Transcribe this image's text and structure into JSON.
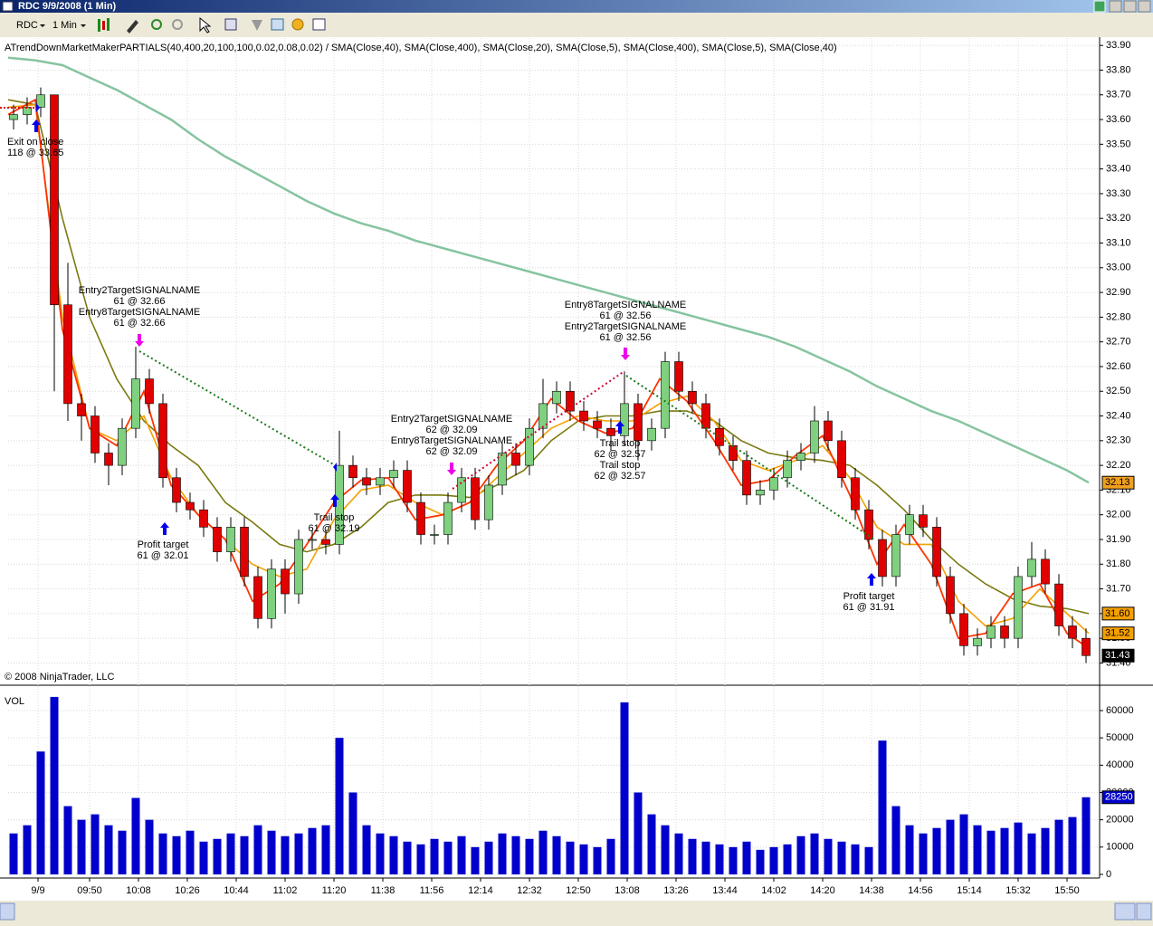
{
  "window": {
    "title": "RDC  9/9/2008 (1 Min)"
  },
  "toolbar": {
    "instrument": "RDC",
    "interval": "1 Min"
  },
  "chart_data": [
    {
      "type": "candlestick",
      "title": "ATrendDownMarketMakerPARTIALS(40,400,20,100,100,0.02,0.08,0.02) / SMA(Close,40), SMA(Close,400), SMA(Close,20), SMA(Close,5), SMA(Close,400), SMA(Close,5), SMA(Close,40)",
      "copyright": "© 2008 NinjaTrader, LLC",
      "up_color": "#7fd07f",
      "down_color": "#e00000",
      "x": [
        562,
        567,
        572,
        577,
        582,
        587,
        592,
        597,
        602,
        607,
        612,
        617,
        622,
        627,
        632,
        637,
        642,
        647,
        652,
        657,
        662,
        667,
        672,
        677,
        682,
        687,
        692,
        697,
        702,
        707,
        712,
        717,
        722,
        727,
        732,
        737,
        742,
        747,
        752,
        757,
        762,
        767,
        772,
        777,
        782,
        787,
        792,
        797,
        802,
        807,
        812,
        817,
        822,
        827,
        832,
        837,
        842,
        847,
        852,
        857,
        862,
        867,
        872,
        877,
        882,
        887,
        892,
        897,
        902,
        907,
        912,
        917,
        922,
        927,
        932,
        937,
        942,
        947,
        952,
        957
      ],
      "open": [
        33.6,
        33.62,
        33.65,
        33.7,
        32.85,
        32.45,
        32.4,
        32.25,
        32.2,
        32.35,
        32.55,
        32.45,
        32.15,
        32.05,
        32.02,
        31.95,
        31.85,
        31.95,
        31.75,
        31.58,
        31.78,
        31.68,
        31.9,
        31.9,
        31.88,
        32.2,
        32.15,
        32.12,
        32.15,
        32.18,
        32.05,
        31.92,
        31.92,
        32.05,
        32.15,
        31.98,
        32.12,
        32.25,
        32.2,
        32.35,
        32.45,
        32.5,
        32.42,
        32.38,
        32.35,
        32.32,
        32.45,
        32.3,
        32.35,
        32.62,
        32.5,
        32.45,
        32.35,
        32.28,
        32.22,
        32.08,
        32.1,
        32.15,
        32.22,
        32.25,
        32.38,
        32.3,
        32.15,
        32.02,
        31.9,
        31.75,
        31.92,
        32.0,
        31.95,
        31.75,
        31.6,
        31.47,
        31.5,
        31.55,
        31.5,
        31.75,
        31.82,
        31.72,
        31.55,
        31.5
      ],
      "high": [
        33.66,
        33.69,
        33.73,
        33.7,
        33.02,
        32.49,
        32.44,
        32.29,
        32.39,
        32.68,
        32.59,
        32.49,
        32.19,
        32.09,
        32.06,
        31.99,
        31.99,
        31.99,
        31.79,
        31.82,
        31.82,
        31.94,
        31.94,
        31.94,
        32.34,
        32.24,
        32.19,
        32.19,
        32.22,
        32.22,
        32.09,
        31.96,
        32.09,
        32.19,
        32.19,
        32.16,
        32.29,
        32.29,
        32.39,
        32.55,
        32.54,
        32.54,
        32.46,
        32.42,
        32.39,
        32.58,
        32.49,
        32.39,
        32.66,
        32.66,
        32.54,
        32.49,
        32.39,
        32.32,
        32.26,
        32.14,
        32.19,
        32.26,
        32.29,
        32.44,
        32.42,
        32.34,
        32.19,
        32.06,
        31.94,
        31.96,
        32.04,
        32.04,
        31.99,
        31.79,
        31.64,
        31.54,
        31.59,
        31.59,
        31.79,
        31.89,
        31.86,
        31.76,
        31.59,
        31.54
      ],
      "low": [
        33.56,
        33.58,
        33.61,
        32.5,
        32.38,
        32.3,
        32.21,
        32.12,
        32.16,
        32.31,
        32.41,
        32.11,
        32.01,
        31.98,
        31.91,
        31.81,
        31.81,
        31.71,
        31.54,
        31.54,
        31.6,
        31.64,
        31.86,
        31.84,
        31.84,
        32.11,
        32.08,
        32.08,
        32.11,
        32.01,
        31.88,
        31.88,
        31.88,
        32.01,
        31.94,
        31.94,
        32.08,
        32.16,
        32.16,
        32.31,
        32.41,
        32.38,
        32.34,
        32.31,
        32.26,
        32.28,
        32.22,
        32.26,
        32.31,
        32.46,
        32.41,
        32.31,
        32.24,
        32.18,
        32.04,
        32.04,
        32.06,
        32.11,
        32.18,
        32.21,
        32.26,
        32.11,
        31.98,
        31.86,
        31.71,
        31.71,
        31.88,
        31.91,
        31.71,
        31.56,
        31.43,
        31.43,
        31.46,
        31.46,
        31.46,
        31.71,
        31.68,
        31.51,
        31.46,
        31.4
      ],
      "close": [
        33.62,
        33.65,
        33.7,
        32.85,
        32.45,
        32.4,
        32.25,
        32.2,
        32.35,
        32.55,
        32.45,
        32.15,
        32.05,
        32.02,
        31.95,
        31.85,
        31.95,
        31.75,
        31.58,
        31.78,
        31.68,
        31.9,
        31.9,
        31.88,
        32.2,
        32.15,
        32.12,
        32.15,
        32.18,
        32.05,
        31.92,
        31.92,
        32.05,
        32.15,
        31.98,
        32.12,
        32.25,
        32.2,
        32.35,
        32.45,
        32.5,
        32.42,
        32.38,
        32.35,
        32.32,
        32.45,
        32.3,
        32.35,
        32.62,
        32.5,
        32.45,
        32.35,
        32.28,
        32.22,
        32.08,
        32.1,
        32.15,
        32.22,
        32.25,
        32.38,
        32.3,
        32.15,
        32.02,
        31.9,
        31.75,
        31.92,
        32.0,
        31.95,
        31.75,
        31.6,
        31.47,
        31.5,
        31.55,
        31.5,
        31.75,
        31.82,
        31.72,
        31.55,
        31.5,
        31.43
      ],
      "line_x": [
        560,
        570,
        580,
        590,
        600,
        610,
        620,
        630,
        640,
        650,
        660,
        670,
        680,
        690,
        700,
        710,
        720,
        730,
        740,
        750,
        760,
        770,
        780,
        790,
        800,
        810,
        820,
        830,
        840,
        850,
        860,
        870,
        880,
        890,
        900,
        910,
        920,
        930,
        940,
        950,
        958
      ],
      "lines": [
        {
          "color": "#86c4a0",
          "width": 2.5,
          "values": [
            33.85,
            33.84,
            33.82,
            33.77,
            33.72,
            33.66,
            33.6,
            33.52,
            33.45,
            33.39,
            33.33,
            33.27,
            33.22,
            33.18,
            33.15,
            33.11,
            33.08,
            33.05,
            33.02,
            32.99,
            32.96,
            32.93,
            32.9,
            32.87,
            32.84,
            32.81,
            32.78,
            32.75,
            32.72,
            32.68,
            32.63,
            32.58,
            32.52,
            32.47,
            32.42,
            32.38,
            32.33,
            32.28,
            32.23,
            32.18,
            32.13
          ]
        },
        {
          "color": "#7a7a10",
          "width": 1.6,
          "values": [
            33.68,
            33.66,
            33.2,
            32.8,
            32.55,
            32.38,
            32.28,
            32.2,
            32.05,
            31.97,
            31.88,
            31.85,
            31.88,
            31.95,
            32.05,
            32.08,
            32.08,
            32.07,
            32.12,
            32.18,
            32.3,
            32.38,
            32.4,
            32.4,
            32.42,
            32.42,
            32.38,
            32.3,
            32.25,
            32.23,
            32.22,
            32.2,
            32.12,
            32.02,
            31.9,
            31.8,
            31.72,
            31.66,
            31.63,
            31.62,
            31.6
          ]
        },
        {
          "color": "#f5a000",
          "width": 1.6,
          "values": [
            33.65,
            33.66,
            32.8,
            32.35,
            32.3,
            32.4,
            32.15,
            32.0,
            31.9,
            31.8,
            31.75,
            31.78,
            31.98,
            32.1,
            32.12,
            32.05,
            32.0,
            32.05,
            32.15,
            32.25,
            32.35,
            32.4,
            32.38,
            32.38,
            32.45,
            32.48,
            32.38,
            32.22,
            32.18,
            32.22,
            32.28,
            32.15,
            31.95,
            31.88,
            31.88,
            31.65,
            31.55,
            31.58,
            31.7,
            31.6,
            31.52
          ]
        },
        {
          "color": "#ff3300",
          "width": 1.8,
          "values": [
            33.62,
            33.68,
            32.75,
            32.35,
            32.28,
            32.5,
            32.12,
            32.0,
            31.9,
            31.65,
            31.72,
            31.88,
            32.05,
            32.14,
            32.15,
            31.98,
            32.0,
            32.05,
            32.2,
            32.3,
            32.47,
            32.38,
            32.33,
            32.35,
            32.55,
            32.46,
            32.3,
            32.12,
            32.14,
            32.24,
            32.32,
            32.08,
            31.8,
            31.96,
            31.8,
            31.5,
            31.52,
            31.68,
            31.72,
            31.52,
            31.46
          ]
        }
      ],
      "price_labels": [
        {
          "value": 32.13,
          "color": "#f0a020",
          "text_color": "#000000"
        },
        {
          "value": {
            "value": 31.6,
            "label": "31.60"
          },
          "color": "#f5a000",
          "text_color": "#000000"
        },
        {
          "value": 31.52,
          "color": "#f5a000",
          "text_color": "#000000"
        },
        {
          "value": 31.43,
          "color": "#000000",
          "text_color": "#ffffff"
        }
      ],
      "annotations": [
        {
          "lines": [
            "Exit on close",
            "118 @ 33.65"
          ]
        },
        {
          "lines": [
            "Entry2TargetSIGNALNAME",
            "61 @ 32.66",
            "Entry8TargetSIGNALNAME",
            "61 @ 32.66"
          ]
        },
        {
          "lines": [
            "Profit target",
            "61 @ 32.01"
          ]
        },
        {
          "lines": [
            "Trail stop",
            "61 @ 32.19"
          ]
        },
        {
          "lines": [
            "Entry2TargetSIGNALNAME",
            "62 @ 32.09",
            "Entry8TargetSIGNALNAME",
            "62 @ 32.09"
          ]
        },
        {
          "lines": [
            "Entry8TargetSIGNALNAME",
            "61 @ 32.56",
            "Entry2TargetSIGNALNAME",
            "61 @ 32.56"
          ]
        },
        {
          "lines": [
            "Trail stop",
            "62 @ 32.57",
            "Trail stop",
            "62 @ 32.57"
          ]
        },
        {
          "lines": [
            "Profit target",
            "61 @ 31.91"
          ]
        }
      ],
      "xlim": [
        560,
        962
      ],
      "ylim": [
        31.31,
        33.93
      ],
      "grid": true,
      "yticks": [
        {
          "value": 33.9,
          "label": "33.90"
        },
        {
          "value": 33.8,
          "label": "33.80"
        },
        {
          "value": 33.7,
          "label": "33.70"
        },
        {
          "value": 33.6,
          "label": "33.60"
        },
        {
          "value": 33.5,
          "label": "33.50"
        },
        {
          "value": 33.4,
          "label": "33.40"
        },
        {
          "value": 33.3,
          "label": "33.30"
        },
        {
          "value": 33.2,
          "label": "33.20"
        },
        {
          "value": 33.1,
          "label": "33.10"
        },
        {
          "value": 33.0,
          "label": "33.00"
        },
        {
          "value": 32.9,
          "label": "32.90"
        },
        {
          "value": 32.8,
          "label": "32.80"
        },
        {
          "value": 32.7,
          "label": "32.70"
        },
        {
          "value": 32.6,
          "label": "32.60"
        },
        {
          "value": 32.5,
          "label": "32.50"
        },
        {
          "value": 32.4,
          "label": "32.40"
        },
        {
          "value": 32.3,
          "label": "32.30"
        },
        {
          "value": 32.2,
          "label": "32.20"
        },
        {
          "value": 32.1,
          "label": "32.10"
        },
        {
          "value": 32.0,
          "label": "32.00"
        },
        {
          "value": 31.9,
          "label": "31.90"
        },
        {
          "value": 31.8,
          "label": "31.80"
        },
        {
          "value": 31.7,
          "label": "31.70"
        },
        {
          "value": 31.6,
          "label": "31.60"
        },
        {
          "value": 31.5,
          "label": "31.50"
        },
        {
          "value": 31.4,
          "label": "31.40"
        }
      ],
      "xticks": [
        {
          "value": 571,
          "label": "9/9"
        },
        {
          "value": 590,
          "label": "09:50"
        },
        {
          "value": 608,
          "label": "10:08"
        },
        {
          "value": 626,
          "label": "10:26"
        },
        {
          "value": 644,
          "label": "10:44"
        },
        {
          "value": 662,
          "label": "11:02"
        },
        {
          "value": 680,
          "label": "11:20"
        },
        {
          "value": 698,
          "label": "11:38"
        },
        {
          "value": 716,
          "label": "11:56"
        },
        {
          "value": 734,
          "label": "12:14"
        },
        {
          "value": 752,
          "label": "12:32"
        },
        {
          "value": 770,
          "label": "12:50"
        },
        {
          "value": 788,
          "label": "13:08"
        },
        {
          "value": 806,
          "label": "13:26"
        },
        {
          "value": 824,
          "label": "13:44"
        },
        {
          "value": 842,
          "label": "14:02"
        },
        {
          "value": 860,
          "label": "14:20"
        },
        {
          "value": 878,
          "label": "14:38"
        },
        {
          "value": 896,
          "label": "14:56"
        },
        {
          "value": 914,
          "label": "15:14"
        },
        {
          "value": 932,
          "label": "15:32"
        },
        {
          "value": 950,
          "label": "15:50"
        }
      ]
    },
    {
      "type": "bar",
      "label": "VOL",
      "color": "#0000cc",
      "x": [
        562,
        567,
        572,
        577,
        582,
        587,
        592,
        597,
        602,
        607,
        612,
        617,
        622,
        627,
        632,
        637,
        642,
        647,
        652,
        657,
        662,
        667,
        672,
        677,
        682,
        687,
        692,
        697,
        702,
        707,
        712,
        717,
        722,
        727,
        732,
        737,
        742,
        747,
        752,
        757,
        762,
        767,
        772,
        777,
        782,
        787,
        792,
        797,
        802,
        807,
        812,
        817,
        822,
        827,
        832,
        837,
        842,
        847,
        852,
        857,
        862,
        867,
        872,
        877,
        882,
        887,
        892,
        897,
        902,
        907,
        912,
        917,
        922,
        927,
        932,
        937,
        942,
        947,
        952,
        957
      ],
      "values": [
        15000,
        18000,
        45000,
        65000,
        25000,
        20000,
        22000,
        18000,
        16000,
        28000,
        20000,
        15000,
        14000,
        16000,
        12000,
        13000,
        15000,
        14000,
        18000,
        16000,
        14000,
        15000,
        17000,
        18000,
        50000,
        30000,
        18000,
        15000,
        14000,
        12000,
        11000,
        13000,
        12000,
        14000,
        10000,
        12000,
        15000,
        14000,
        13000,
        16000,
        14000,
        12000,
        11000,
        10000,
        13000,
        63000,
        30000,
        22000,
        18000,
        15000,
        13000,
        12000,
        11000,
        10000,
        12000,
        9000,
        10000,
        11000,
        14000,
        15000,
        13000,
        12000,
        11000,
        10000,
        49000,
        25000,
        18000,
        15000,
        17000,
        20000,
        22000,
        18000,
        16000,
        17000,
        19000,
        15000,
        17000,
        20000,
        21000,
        28250
      ],
      "last_label": {
        "value": 28250,
        "color": "#0000cc",
        "text_color": "#ffffff"
      },
      "xlim": [
        560,
        962
      ],
      "ylim": [
        -1330,
        68950
      ],
      "grid": true,
      "yticks": [
        0,
        10000,
        20000,
        30000,
        40000,
        50000,
        60000
      ]
    }
  ]
}
